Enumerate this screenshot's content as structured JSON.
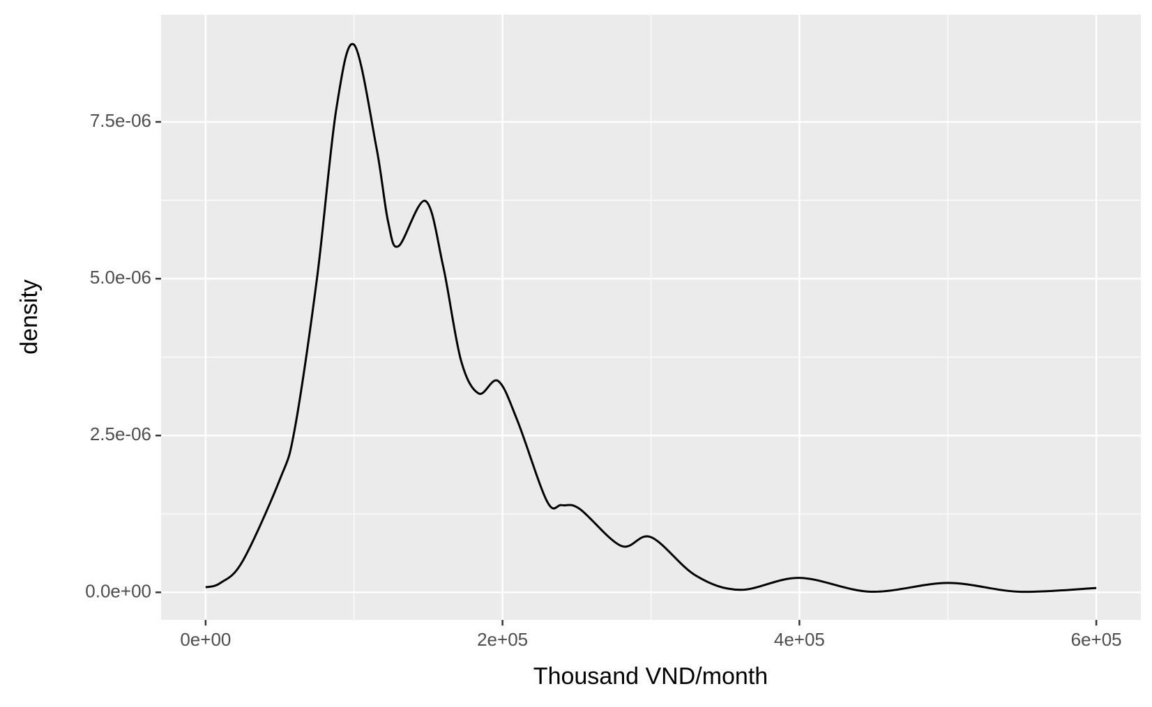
{
  "chart_data": {
    "type": "line",
    "x_label": "Thousand VND/month",
    "y_label": "density",
    "x": [
      0,
      10000,
      25000,
      50000,
      60000,
      75000,
      88000,
      100000,
      115000,
      123000,
      130000,
      148000,
      160000,
      172000,
      184000,
      197000,
      210000,
      230000,
      240000,
      252000,
      280000,
      300000,
      330000,
      360000,
      400000,
      448000,
      500000,
      548000,
      600000
    ],
    "series": [
      {
        "name": "density",
        "color": "#000000",
        "values": [
          8e-08,
          1.5e-07,
          5e-07,
          1.8e-06,
          2.6e-06,
          5e-06,
          7.7e-06,
          8.73e-06,
          7.1e-06,
          5.9e-06,
          5.52e-06,
          6.24e-06,
          5.2e-06,
          3.7e-06,
          3.17e-06,
          3.37e-06,
          2.74e-06,
          1.45e-06,
          1.39e-06,
          1.33e-06,
          7.4e-07,
          8.8e-07,
          2.7e-07,
          4e-08,
          2.3e-07,
          1e-08,
          1.5e-07,
          1e-08,
          7e-08
        ]
      }
    ],
    "xlim": [
      -30000,
      630000
    ],
    "ylim": [
      -4.4e-07,
      9.21e-06
    ],
    "xticks": [
      {
        "value": 0,
        "label": "0e+00"
      },
      {
        "value": 200000,
        "label": "2e+05"
      },
      {
        "value": 400000,
        "label": "4e+05"
      },
      {
        "value": 600000,
        "label": "6e+05"
      }
    ],
    "yticks": [
      {
        "value": 0,
        "label": "0.0e+00"
      },
      {
        "value": 2.5e-06,
        "label": "2.5e-06"
      },
      {
        "value": 5e-06,
        "label": "5.0e-06"
      },
      {
        "value": 7.5e-06,
        "label": "7.5e-06"
      }
    ],
    "grid": true
  }
}
